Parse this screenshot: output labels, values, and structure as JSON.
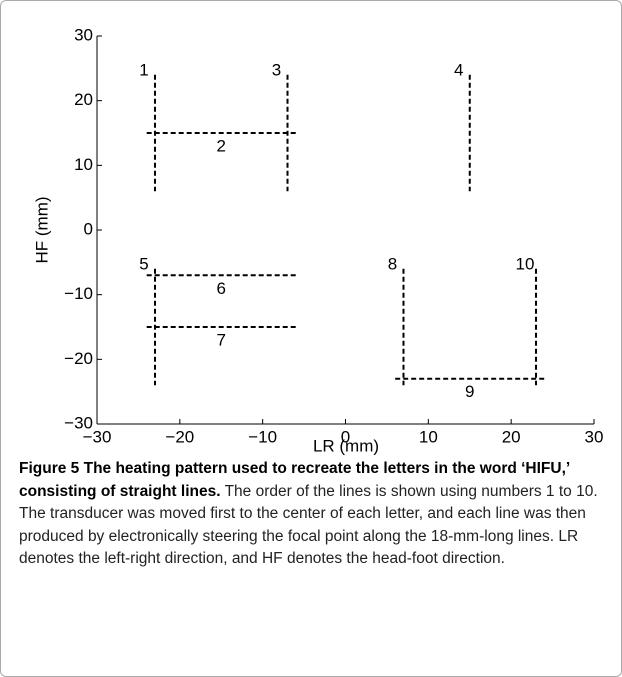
{
  "chart_data": {
    "type": "line",
    "xlabel": "LR (mm)",
    "ylabel": "HF (mm)",
    "xlim": [
      -30,
      30
    ],
    "ylim": [
      -30,
      30
    ],
    "xticks": [
      {
        "value": -30,
        "label": "−30"
      },
      {
        "value": -20,
        "label": "−20"
      },
      {
        "value": -10,
        "label": "−10"
      },
      0,
      10,
      20,
      30
    ],
    "yticks": [
      {
        "value": -30,
        "label": "−30"
      },
      {
        "value": -20,
        "label": "−20"
      },
      {
        "value": -10,
        "label": "−10"
      },
      0,
      10,
      20,
      30
    ],
    "color": "#000000",
    "series": [
      {
        "name": "1",
        "x": [
          -23,
          -23
        ],
        "values": [
          24,
          6
        ]
      },
      {
        "name": "2",
        "x": [
          -24,
          -6
        ],
        "values": [
          15,
          15
        ]
      },
      {
        "name": "3",
        "x": [
          -7,
          -7
        ],
        "values": [
          24,
          6
        ]
      },
      {
        "name": "4",
        "x": [
          15,
          15
        ],
        "values": [
          24,
          6
        ]
      },
      {
        "name": "5",
        "x": [
          -23,
          -23
        ],
        "values": [
          -6,
          -24
        ]
      },
      {
        "name": "6",
        "x": [
          -24,
          -6
        ],
        "values": [
          -7,
          -7
        ]
      },
      {
        "name": "7",
        "x": [
          -24,
          -6
        ],
        "values": [
          -15,
          -15
        ]
      },
      {
        "name": "8",
        "x": [
          7,
          7
        ],
        "values": [
          -6,
          -24
        ]
      },
      {
        "name": "9",
        "x": [
          6,
          24
        ],
        "values": [
          -23,
          -23
        ]
      },
      {
        "name": "10",
        "x": [
          23,
          23
        ],
        "values": [
          -6,
          -24
        ]
      }
    ],
    "caption_bold": "Figure 5 The heating pattern used to recreate the letters in the word ‘HIFU,’ consisting of straight lines.",
    "caption": "The order of the lines is shown using numbers 1 to 10. The transducer was moved first to the center of each letter, and each line was then produced by electronically steering the focal point along the 18-mm-long lines. LR denotes the left-right direction, and HF denotes the head-foot direction."
  }
}
